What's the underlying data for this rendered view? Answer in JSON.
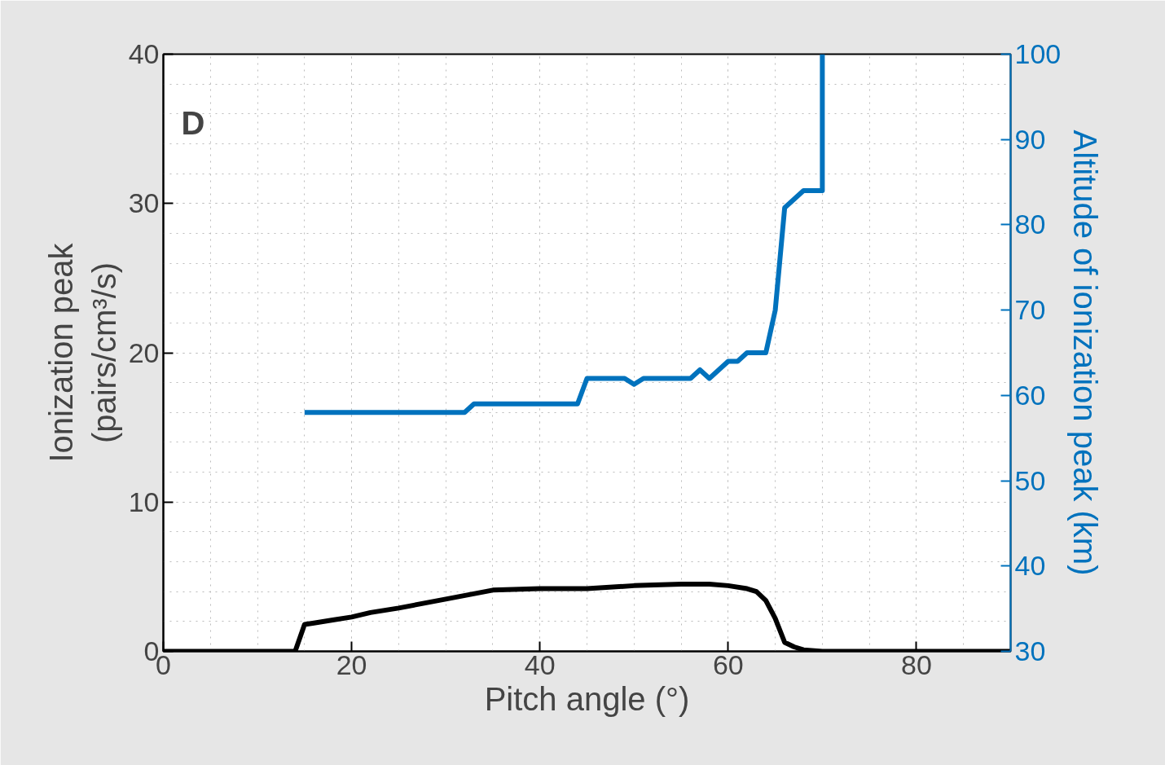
{
  "chart_data": {
    "type": "line",
    "xlabel": "Pitch angle (°)",
    "ylabel": "Ionization peak\n(pairs/cm³/s)",
    "y2label": "Altitude of ionization peak (km)",
    "annotations": [
      "D"
    ],
    "xlim": [
      0,
      90
    ],
    "xticks": [
      0,
      20,
      40,
      60,
      80
    ],
    "ylim": [
      0,
      40
    ],
    "yticks": [
      0,
      10,
      20,
      30,
      40
    ],
    "y2lim": [
      30,
      100
    ],
    "y2ticks": [
      30,
      40,
      50,
      60,
      70,
      80,
      90,
      100
    ],
    "grid": true,
    "line_style": "solid",
    "series": [
      {
        "color": "#000000",
        "x": [
          0,
          14,
          15,
          16,
          18,
          20,
          22,
          25,
          30,
          35,
          40,
          45,
          50,
          55,
          58,
          60,
          62,
          63,
          64,
          65,
          66,
          67,
          68,
          70,
          90
        ],
        "values": [
          0,
          0,
          1.8,
          1.9,
          2.1,
          2.3,
          2.6,
          2.9,
          3.5,
          4.1,
          4.2,
          4.2,
          4.4,
          4.5,
          4.5,
          4.4,
          4.2,
          4.0,
          3.4,
          2.2,
          0.6,
          0.3,
          0.1,
          0,
          0
        ]
      },
      {
        "color": "#0072bd",
        "axis": "y2",
        "x": [
          15,
          32,
          33,
          44,
          45,
          49,
          50,
          51,
          56,
          57,
          58,
          59,
          60,
          61,
          62,
          64,
          65,
          66,
          67,
          68,
          70,
          70
        ],
        "values": [
          58,
          58,
          59,
          59,
          62,
          62,
          61.3,
          62,
          62,
          63,
          62,
          63,
          64,
          64,
          65,
          65,
          70,
          82,
          83,
          84,
          84,
          100
        ]
      }
    ]
  }
}
